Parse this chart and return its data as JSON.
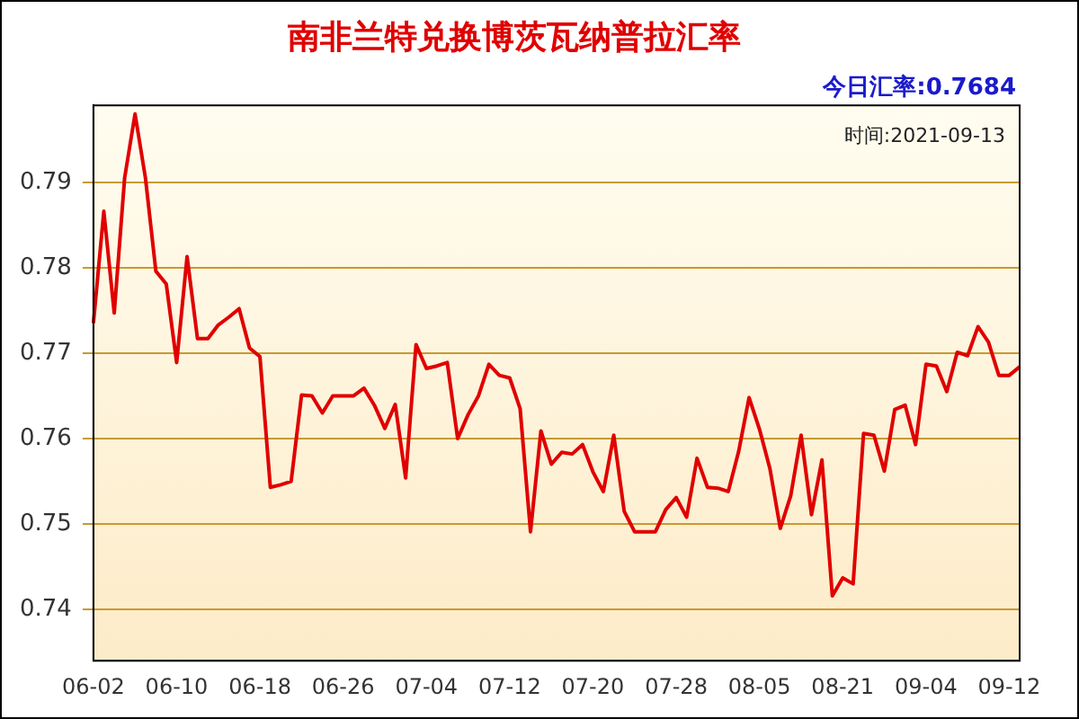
{
  "chart_data": {
    "type": "line",
    "title": "南非兰特兑换博茨瓦纳普拉汇率",
    "annotations": [
      "今日汇率:0.7684",
      "时间:2021-09-13"
    ],
    "categories": [
      "06-02",
      null,
      null,
      null,
      null,
      null,
      null,
      null,
      "06-10",
      null,
      null,
      null,
      null,
      null,
      null,
      null,
      "06-18",
      null,
      null,
      null,
      null,
      null,
      null,
      null,
      "06-26",
      null,
      null,
      null,
      null,
      null,
      null,
      null,
      "07-04",
      null,
      null,
      null,
      null,
      null,
      null,
      null,
      "07-12",
      null,
      null,
      null,
      null,
      null,
      null,
      null,
      "07-20",
      null,
      null,
      null,
      null,
      null,
      null,
      null,
      "07-28",
      null,
      null,
      null,
      null,
      null,
      null,
      null,
      "08-05",
      null,
      null,
      null,
      null,
      null,
      null,
      null,
      "08-21",
      null,
      null,
      null,
      null,
      null,
      null,
      null,
      "09-04",
      null,
      null,
      null,
      null,
      null,
      null,
      null,
      "09-12",
      null
    ],
    "series": [
      {
        "color": "#e00000",
        "values": [
          0.7735,
          0.7866,
          0.7747,
          0.7905,
          0.798,
          0.7905,
          0.7796,
          0.7781,
          0.7689,
          0.7813,
          0.7717,
          0.7717,
          0.7733,
          0.7742,
          0.7752,
          0.7706,
          0.7696,
          0.7543,
          0.7546,
          0.755,
          0.7651,
          0.765,
          0.763,
          0.765,
          0.765,
          0.765,
          0.7659,
          0.7639,
          0.7612,
          0.764,
          0.7554,
          0.771,
          0.7682,
          0.7685,
          0.7689,
          0.76,
          0.7628,
          0.765,
          0.7687,
          0.7674,
          0.7671,
          0.7635,
          0.7491,
          0.7609,
          0.757,
          0.7584,
          0.7582,
          0.7593,
          0.7561,
          0.7538,
          0.7604,
          0.7515,
          0.7491,
          0.7491,
          0.7491,
          0.7517,
          0.7531,
          0.7508,
          0.7577,
          0.7543,
          0.7542,
          0.7538,
          0.7585,
          0.7648,
          0.7611,
          0.7565,
          0.7495,
          0.7533,
          0.7604,
          0.7511,
          0.7575,
          0.7416,
          0.7437,
          0.743,
          0.7606,
          0.7604,
          0.7562,
          0.7634,
          0.7639,
          0.7593,
          0.7687,
          0.7685,
          0.7655,
          0.7701,
          0.7697,
          0.7731,
          0.7713,
          0.7674,
          0.7674,
          0.7684
        ]
      }
    ],
    "ylim": [
      0.734,
      0.799
    ],
    "yticks": [
      0.74,
      0.75,
      0.76,
      0.77,
      0.78,
      0.79
    ],
    "grid": "y",
    "legend": false,
    "marker": "none",
    "line_style": "solid"
  }
}
